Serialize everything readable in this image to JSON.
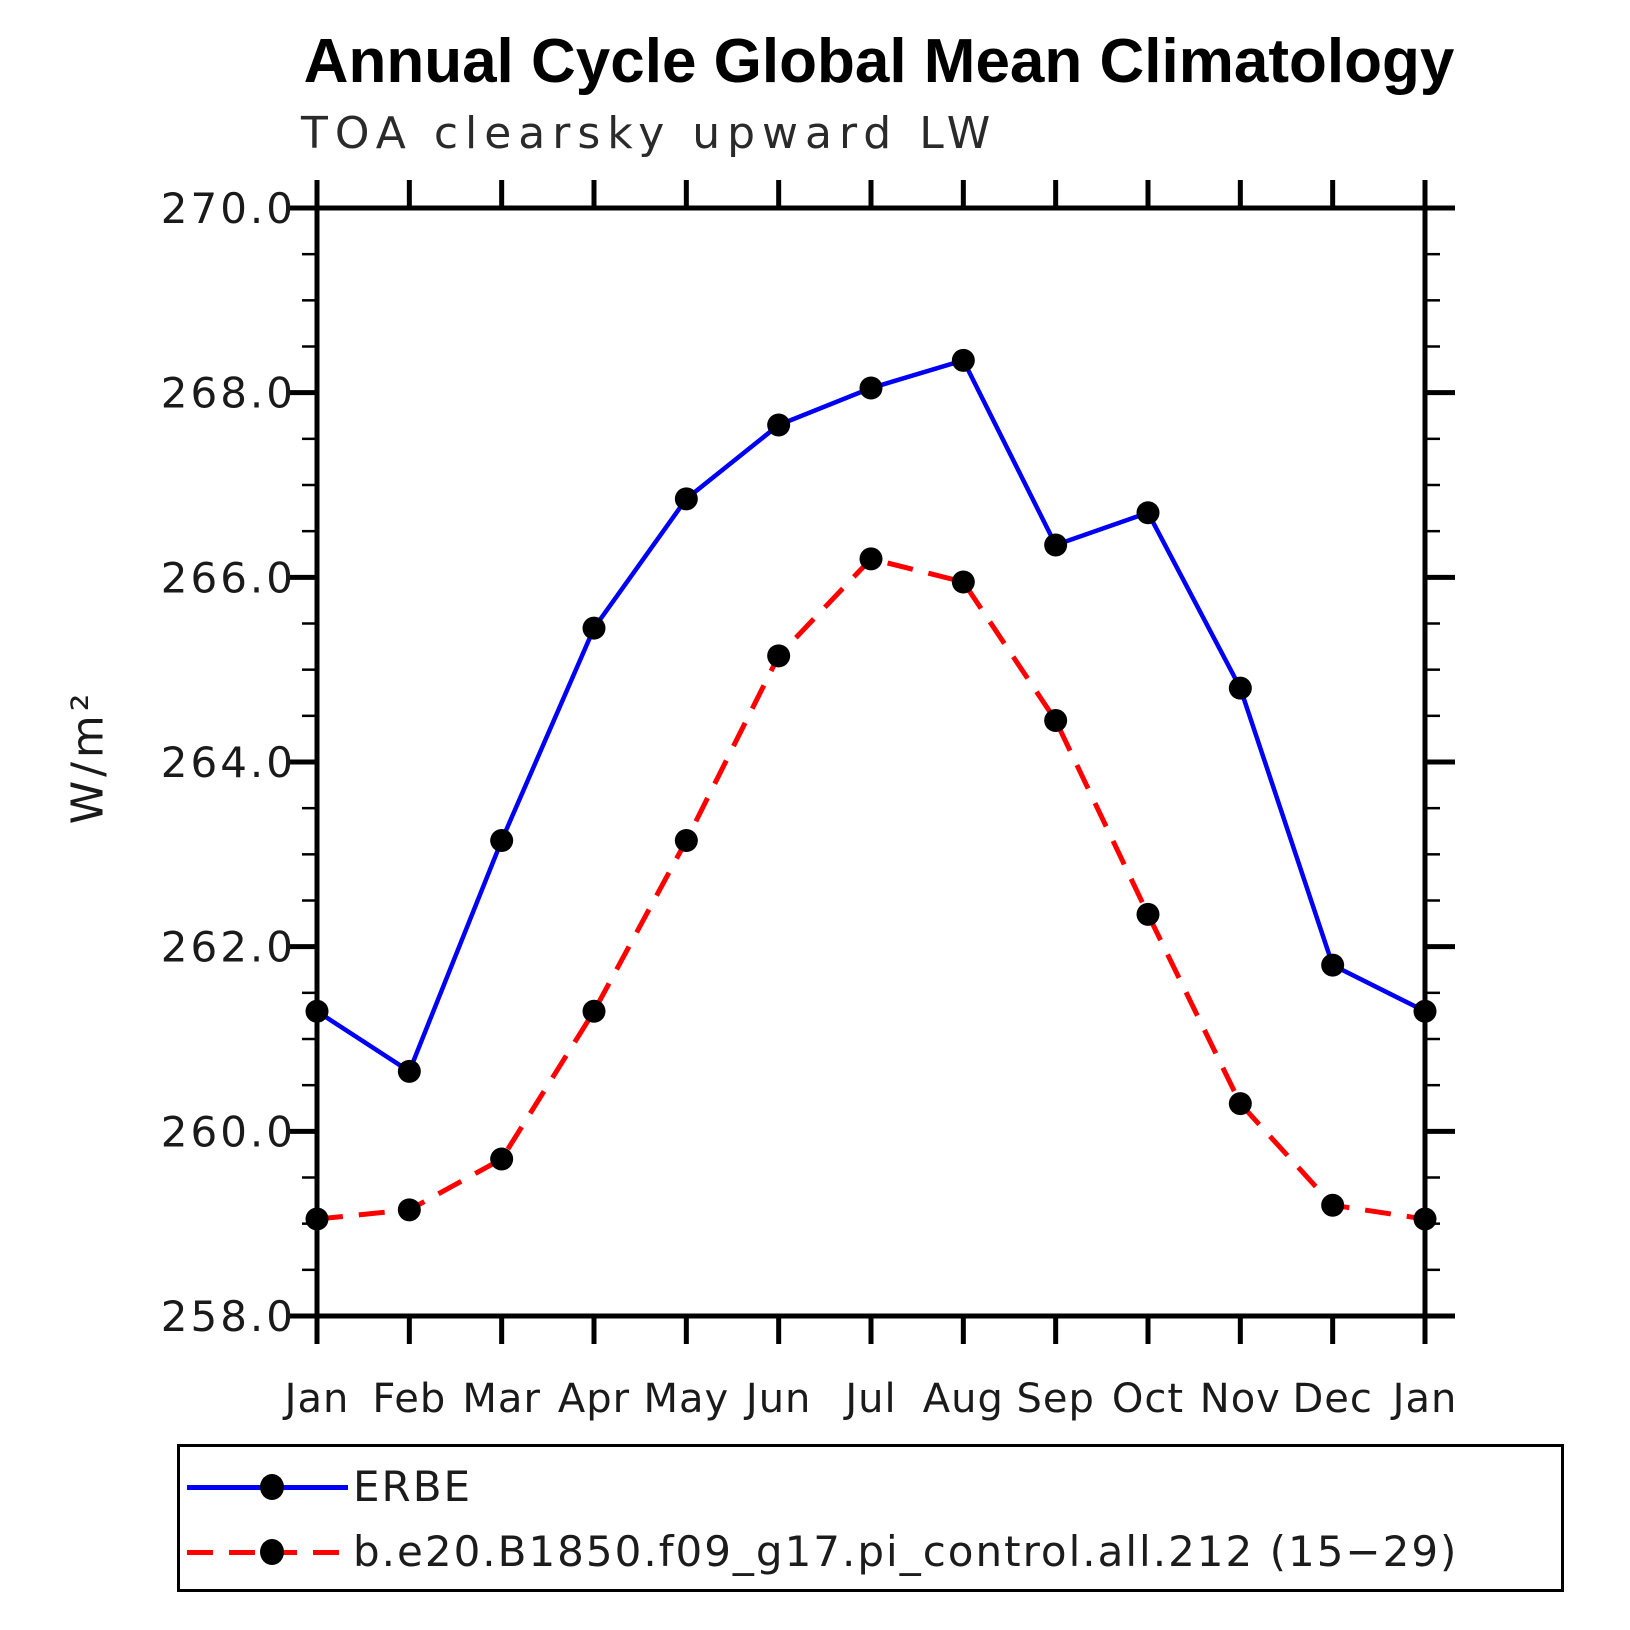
{
  "title": "Annual Cycle Global Mean Climatology",
  "subtitle": "TOA clearsky upward LW",
  "y_axis": {
    "label": "W/m²",
    "tick_labels": [
      "270.0",
      "268.0",
      "266.0",
      "264.0",
      "262.0",
      "260.0",
      "258.0"
    ]
  },
  "x_axis": {
    "tick_labels": [
      "Jan",
      "Feb",
      "Mar",
      "Apr",
      "May",
      "Jun",
      "Jul",
      "Aug",
      "Sep",
      "Oct",
      "Nov",
      "Dec",
      "Jan"
    ]
  },
  "legend": {
    "items": [
      {
        "label": "ERBE",
        "color": "#0000f5",
        "style": "solid"
      },
      {
        "label": "b.e20.B1850.f09_g17.pi_control.all.212 (15−29)",
        "color": "#ff0000",
        "style": "dashed"
      }
    ]
  },
  "colors": {
    "erbe": "#0000f5",
    "model": "#ff0000",
    "marker": "#000000",
    "axis": "#000000"
  },
  "chart_data": {
    "type": "line",
    "title": "Annual Cycle Global Mean Climatology",
    "subtitle": "TOA clearsky upward LW",
    "xlabel": "",
    "ylabel": "W/m²",
    "ylim": [
      258.0,
      270.0
    ],
    "y_major_step": 2.0,
    "y_minor_step": 0.5,
    "grid": false,
    "legend_position": "bottom",
    "categories": [
      "Jan",
      "Feb",
      "Mar",
      "Apr",
      "May",
      "Jun",
      "Jul",
      "Aug",
      "Sep",
      "Oct",
      "Nov",
      "Dec",
      "Jan"
    ],
    "series": [
      {
        "name": "ERBE",
        "color": "#0000f5",
        "line_style": "solid",
        "marker": "circle",
        "values": [
          261.3,
          260.65,
          263.15,
          265.45,
          266.85,
          267.65,
          268.05,
          268.35,
          266.35,
          266.7,
          264.8,
          261.8,
          261.3
        ]
      },
      {
        "name": "b.e20.B1850.f09_g17.pi_control.all.212 (15−29)",
        "color": "#ff0000",
        "line_style": "dashed",
        "marker": "circle",
        "values": [
          259.05,
          259.15,
          259.7,
          261.3,
          263.15,
          265.15,
          266.2,
          265.95,
          264.45,
          262.35,
          260.3,
          259.2,
          259.05
        ]
      }
    ]
  }
}
